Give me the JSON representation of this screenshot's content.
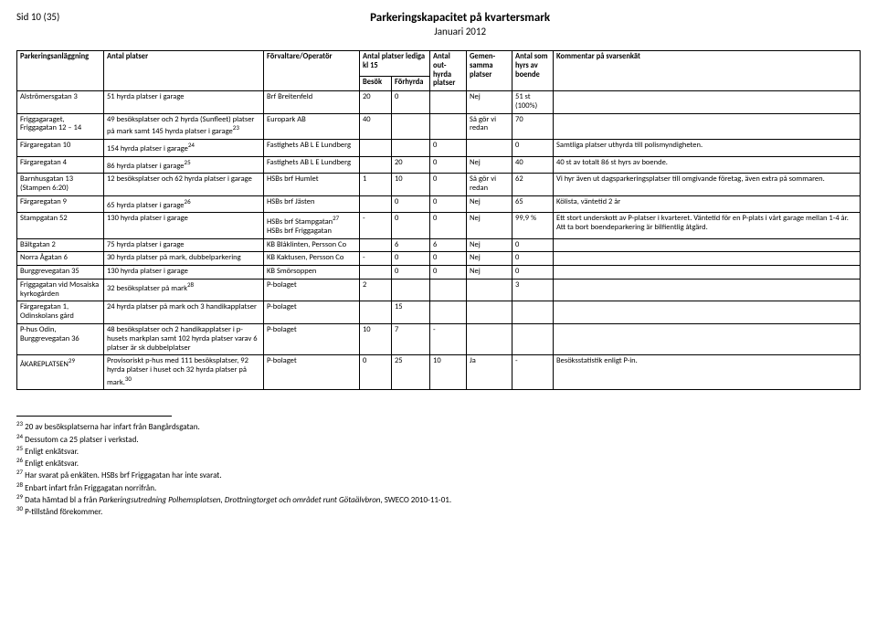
{
  "header": {
    "page": "Sid 10 (35)",
    "title": "Parkeringskapacitet på kvartersmark",
    "subtitle": "Januari 2012"
  },
  "table": {
    "headers": {
      "facility": "Parkeringsanläggning",
      "places": "Antal platser",
      "operator": "Förvaltare/Operatör",
      "lediga": "Antal platser lediga kl 15",
      "besok": "Besök",
      "forhyrda": "Förhyrda",
      "outhyrda": "Antal out-hyrda platser",
      "gemensam": "Gemen-samma platser",
      "hyrs": "Antal som hyrs av boende",
      "comment": "Kommentar på svarsenkät"
    },
    "rows": [
      {
        "facility": "Alströmersgatan 3",
        "places": "51 hyrda platser i garage",
        "operator": "Brf Breitenfeld",
        "besok": "20",
        "forhyrda": "0",
        "outhyrda": "",
        "gemensam": "Nej",
        "hyrs": "51 st (100%)",
        "comment": ""
      },
      {
        "facility": "Friggagaraget, Friggagatan 12 – 14",
        "places": "49 besöksplatser och 2 hyrda (Sunfleet) platser på mark samt 145 hyrda platser i garage",
        "places_sup": "23",
        "operator": "Europark AB",
        "besok": "40",
        "forhyrda": "",
        "outhyrda": "",
        "gemensam": "Så gör vi redan",
        "hyrs": "70",
        "comment": ""
      },
      {
        "facility": "Färgaregatan 10",
        "places": "154 hyrda platser i garage",
        "places_sup": "24",
        "operator": "Fastighets AB L E Lundberg",
        "besok": "",
        "forhyrda": "",
        "outhyrda": "0",
        "gemensam": "",
        "hyrs": "0",
        "comment": "Samtliga platser uthyrda till polismyndigheten."
      },
      {
        "facility": "Färgaregatan 4",
        "places": "86 hyrda platser i garage",
        "places_sup": "25",
        "operator": "Fastighets AB L E Lundberg",
        "besok": "",
        "forhyrda": "20",
        "outhyrda": "0",
        "gemensam": "Nej",
        "hyrs": "40",
        "comment": "40 st av totalt 86 st hyrs av boende."
      },
      {
        "facility": "Barnhusgatan 13 (Stampen 6:20)",
        "places": "12 besöksplatser och 62 hyrda platser i garage",
        "operator": "HSBs brf Humlet",
        "besok": "1",
        "forhyrda": "10",
        "outhyrda": "0",
        "gemensam": "Så gör vi redan",
        "hyrs": "62",
        "comment": "Vi hyr även ut dagsparkeringsplatser till omgivande företag, även extra på sommaren."
      },
      {
        "facility": "Färgaregatan 9",
        "places": "65 hyrda platser i garage",
        "places_sup": "26",
        "operator": "HSBs brf Jästen",
        "besok": "",
        "forhyrda": "0",
        "outhyrda": "0",
        "gemensam": "Nej",
        "hyrs": "65",
        "comment": "Kölista, väntetid 2 år"
      },
      {
        "facility": "Stampgatan 52",
        "places": "130 hyrda platser i garage",
        "operator": "HSBs brf Stampgatan",
        "operator_sup": "27",
        "operator_line2": "HSBs brf Friggagatan",
        "besok": "-",
        "forhyrda": "0",
        "outhyrda": "0",
        "gemensam": "Nej",
        "hyrs": "99,9 %",
        "comment": "Ett stort underskott av P-platser i kvarteret. Väntetid för en P-plats i vårt garage mellan 1-4 år. Att ta bort boendeparkering är bilfientlig åtgärd."
      },
      {
        "facility": "Bältgatan 2",
        "places": "75 hyrda platser i garage",
        "operator": "KB Blåklinten, Persson Co",
        "besok": "",
        "forhyrda": "6",
        "outhyrda": "6",
        "gemensam": "Nej",
        "hyrs": "0",
        "comment": ""
      },
      {
        "facility": "Norra Ågatan 6",
        "places": "30 hyrda platser på mark, dubbelparkering",
        "operator": "KB Kaktusen, Persson Co",
        "besok": "-",
        "forhyrda": "0",
        "outhyrda": "0",
        "gemensam": "Nej",
        "hyrs": "0",
        "comment": ""
      },
      {
        "facility": "Burggrevegatan 35",
        "places": "130 hyrda platser i garage",
        "operator": "KB Smörsoppen",
        "besok": "",
        "forhyrda": "0",
        "outhyrda": "0",
        "gemensam": "Nej",
        "hyrs": "0",
        "comment": ""
      },
      {
        "facility": "Friggagatan vid Mosaiska kyrkogården",
        "places": "32 besöksplatser på mark",
        "places_sup": "28",
        "operator": "P-bolaget",
        "besok": "2",
        "forhyrda": "",
        "outhyrda": "",
        "gemensam": "",
        "hyrs": "3",
        "comment": ""
      },
      {
        "facility": "Färgaregatan 1, Odinskolans gård",
        "places": "24 hyrda platser på mark och 3 handikapplatser",
        "operator": "P-bolaget",
        "besok": "",
        "forhyrda": "15",
        "outhyrda": "",
        "gemensam": "",
        "hyrs": "",
        "comment": ""
      },
      {
        "facility": "P-hus Odin, Burggrevegatan 36",
        "places": "48 besöksplatser och 2 handikapplatser i p-husets markplan samt 102 hyrda platser varav 6 platser är sk dubbelplatser",
        "operator": "P-bolaget",
        "besok": "10",
        "forhyrda": "7",
        "outhyrda": "-",
        "gemensam": "",
        "hyrs": "",
        "comment": ""
      },
      {
        "facility": "ÅKAREPLATSEN",
        "facility_sup": "29",
        "places": "Provisoriskt p-hus med 111 besöksplatser, 92 hyrda platser i huset och 32 hyrda platser på mark.",
        "places_sup": "30",
        "operator": "P-bolaget",
        "besok": "0",
        "forhyrda": "25",
        "outhyrda": "10",
        "gemensam": "Ja",
        "hyrs": "-",
        "comment": "Besöksstatistik enligt P-in."
      }
    ]
  },
  "footnotes": [
    {
      "num": "23",
      "text": "20 av besöksplatserna har infart från Bangårdsgatan."
    },
    {
      "num": "24",
      "text": "Dessutom ca 25 platser i verkstad."
    },
    {
      "num": "25",
      "text": "Enligt enkätsvar."
    },
    {
      "num": "26",
      "text": "Enligt enkätsvar."
    },
    {
      "num": "27",
      "text": "Har svarat på enkäten. HSBs brf Friggagatan har inte svarat."
    },
    {
      "num": "28",
      "text": "Enbart infart från Friggagatan norrifrån."
    },
    {
      "num": "29",
      "text": "Data hämtad bl a från Parkeringsutredning Polhemsplatsen, Drottningtorget och området runt Götaälvbron, SWECO 2010-11-01.",
      "italic": "Parkeringsutredning Polhemsplatsen, Drottningtorget och området runt Götaälvbron"
    },
    {
      "num": "30",
      "text": "P-tillstånd förekommer."
    }
  ]
}
